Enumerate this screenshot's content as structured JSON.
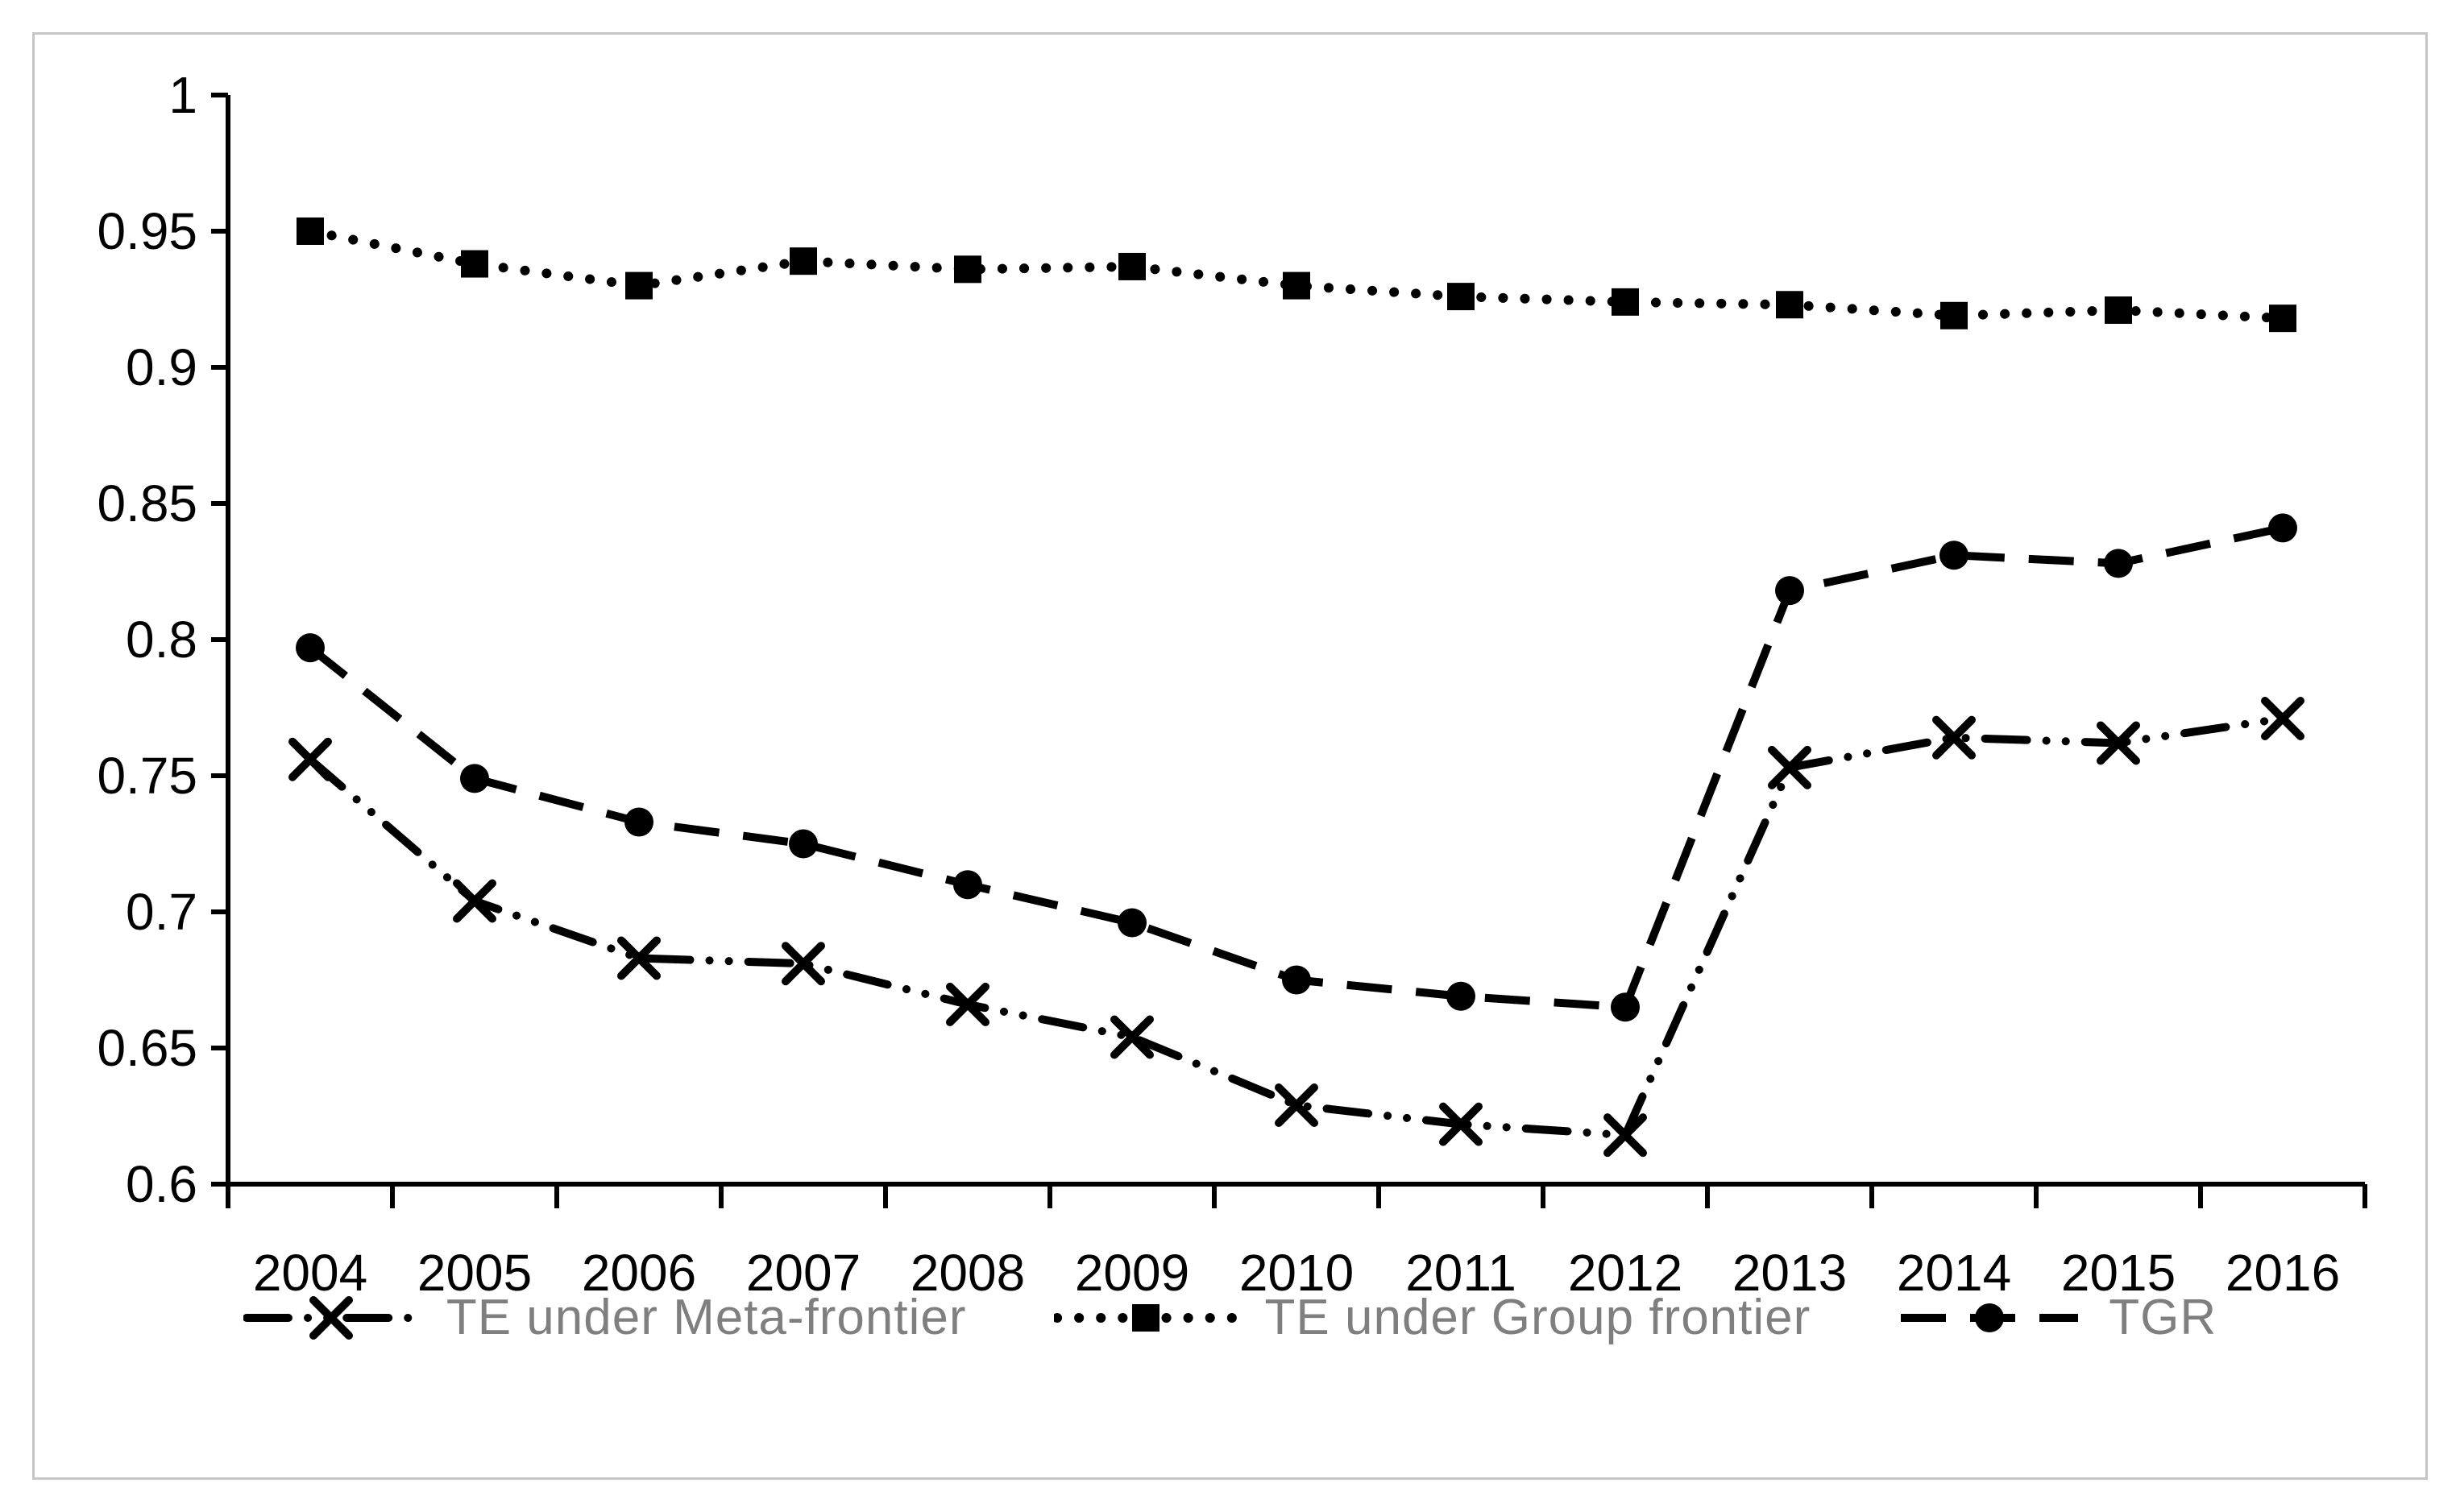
{
  "figure": {
    "background_color": "#ffffff",
    "frame_border_color": "#c6c6c6",
    "axis_color": "#000000",
    "tick_label_color": "#000000",
    "legend_text_color": "#7f7f7f",
    "series_color": "#000000"
  },
  "chart_data": {
    "type": "line",
    "title": "",
    "xlabel": "",
    "ylabel": "",
    "grid": false,
    "legend_position": "bottom",
    "ylim": [
      0.6,
      1.0
    ],
    "ytick_step": 0.05,
    "ytick_labels": [
      "1",
      "0.95",
      "0.9",
      "0.85",
      "0.8",
      "0.75",
      "0.7",
      "0.65",
      "0.6"
    ],
    "x": [
      "2004",
      "2005",
      "2006",
      "2007",
      "2008",
      "2009",
      "2010",
      "2011",
      "2012",
      "2013",
      "2014",
      "2015",
      "2016"
    ],
    "series": [
      {
        "name": "TE under Meta-frontier",
        "marker": "x",
        "line_style": "dash-dot-dot",
        "values": [
          0.756,
          0.704,
          0.683,
          0.681,
          0.666,
          0.654,
          0.629,
          0.622,
          0.618,
          0.753,
          0.764,
          0.762,
          0.771
        ]
      },
      {
        "name": "TE under Group frontier",
        "marker": "square",
        "line_style": "dotted",
        "values": [
          0.95,
          0.938,
          0.93,
          0.939,
          0.936,
          0.937,
          0.93,
          0.926,
          0.924,
          0.923,
          0.919,
          0.921,
          0.918
        ]
      },
      {
        "name": "TGR",
        "marker": "circle",
        "line_style": "dashed",
        "values": [
          0.797,
          0.749,
          0.733,
          0.725,
          0.71,
          0.696,
          0.675,
          0.669,
          0.665,
          0.818,
          0.831,
          0.828,
          0.841
        ]
      }
    ]
  }
}
